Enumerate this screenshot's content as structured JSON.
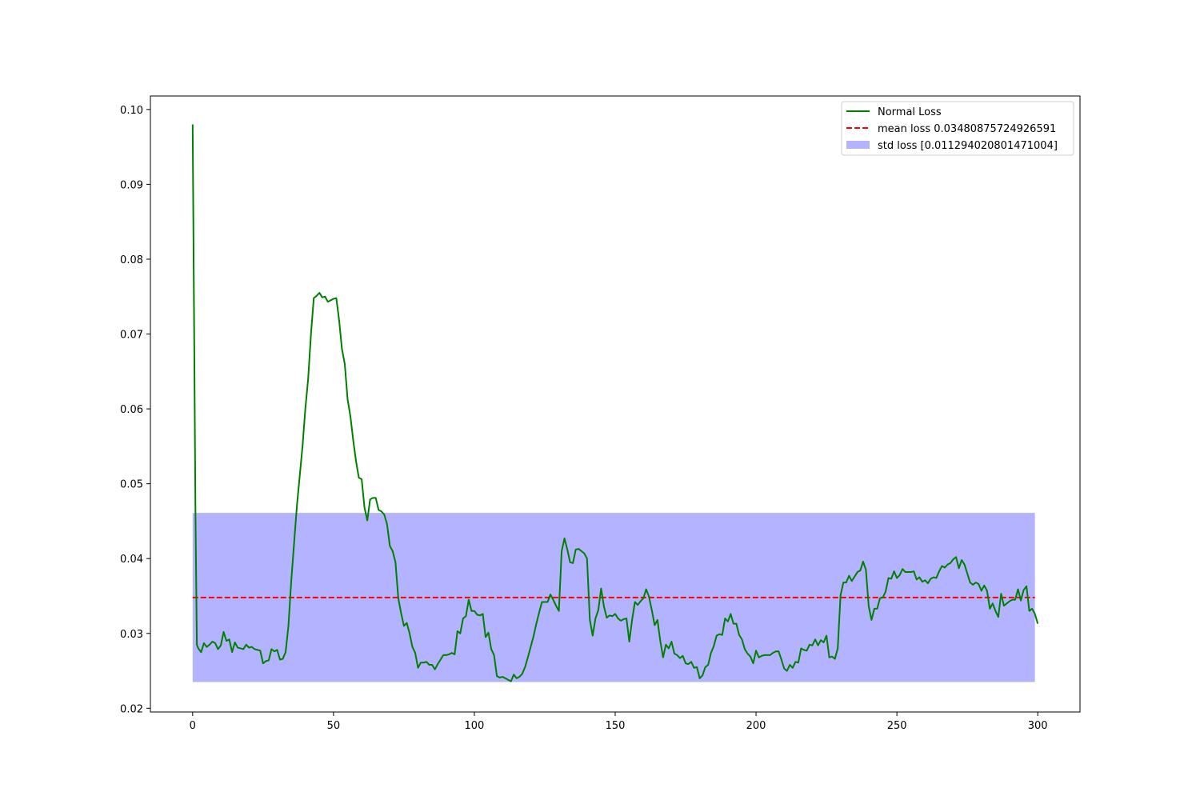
{
  "chart_data": {
    "type": "line",
    "title": "",
    "xlabel": "",
    "ylabel": "",
    "xlim": [
      -15,
      315
    ],
    "ylim": [
      0.0195,
      0.1018
    ],
    "xticks": [
      0,
      50,
      100,
      150,
      200,
      250,
      300
    ],
    "xtick_labels": [
      "0",
      "50",
      "100",
      "150",
      "200",
      "250",
      "300"
    ],
    "yticks": [
      0.02,
      0.03,
      0.04,
      0.05,
      0.06,
      0.07,
      0.08,
      0.09,
      0.1
    ],
    "ytick_labels": [
      "0.02",
      "0.03",
      "0.04",
      "0.05",
      "0.06",
      "0.07",
      "0.08",
      "0.09",
      "0.10"
    ],
    "grid": false,
    "legend_position": "top-right",
    "legend": [
      {
        "label": "Normal Loss",
        "kind": "line",
        "color": "#008000"
      },
      {
        "label": "mean loss 0.03480875724926591",
        "kind": "dashed",
        "color": "#ff0000"
      },
      {
        "label": "std loss [0.011294020801471004]",
        "kind": "patch",
        "color": "#b3b3ff"
      }
    ],
    "mean_loss": 0.03480875724926591,
    "std_loss": 0.011294020801471004,
    "band": {
      "x0": 0,
      "x1": 299,
      "y0": 0.0235,
      "y1": 0.0461,
      "color": "#b3b3ff"
    },
    "mean_line": {
      "x0": 0,
      "x1": 299,
      "y": 0.0348,
      "color": "#ff0000"
    },
    "series": [
      {
        "name": "Normal Loss",
        "color": "#008000",
        "points": [
          [
            0,
            0.098
          ],
          [
            1,
            0.046
          ],
          [
            1.5,
            0.0285
          ],
          [
            2,
            0.028
          ],
          [
            3,
            0.0275
          ],
          [
            4,
            0.0287
          ],
          [
            5,
            0.0282
          ],
          [
            6,
            0.0285
          ],
          [
            7,
            0.0289
          ],
          [
            8,
            0.0287
          ],
          [
            9,
            0.0279
          ],
          [
            10,
            0.0284
          ],
          [
            11,
            0.0302
          ],
          [
            12,
            0.029
          ],
          [
            13,
            0.0292
          ],
          [
            14,
            0.0275
          ],
          [
            15,
            0.0288
          ],
          [
            16,
            0.0281
          ],
          [
            17,
            0.028
          ],
          [
            18,
            0.0279
          ],
          [
            19,
            0.0285
          ],
          [
            20,
            0.0281
          ],
          [
            21,
            0.0282
          ],
          [
            22,
            0.0279
          ],
          [
            23,
            0.0278
          ],
          [
            24,
            0.0277
          ],
          [
            25,
            0.026
          ],
          [
            26,
            0.0263
          ],
          [
            27,
            0.0264
          ],
          [
            28,
            0.0279
          ],
          [
            29,
            0.0276
          ],
          [
            30,
            0.0278
          ],
          [
            31,
            0.0265
          ],
          [
            32,
            0.0266
          ],
          [
            33,
            0.0275
          ],
          [
            34,
            0.031
          ],
          [
            35,
            0.037
          ],
          [
            36,
            0.042
          ],
          [
            37,
            0.047
          ],
          [
            38,
            0.051
          ],
          [
            39,
            0.055
          ],
          [
            40,
            0.06
          ],
          [
            41,
            0.064
          ],
          [
            42,
            0.07
          ],
          [
            43,
            0.0748
          ],
          [
            44,
            0.0751
          ],
          [
            45,
            0.0755
          ],
          [
            46,
            0.0749
          ],
          [
            47,
            0.075
          ],
          [
            48,
            0.0743
          ],
          [
            49,
            0.0745
          ],
          [
            50,
            0.0747
          ],
          [
            51,
            0.0748
          ],
          [
            52,
            0.0718
          ],
          [
            53,
            0.068
          ],
          [
            54,
            0.066
          ],
          [
            55,
            0.0613
          ],
          [
            56,
            0.059
          ],
          [
            57,
            0.0558
          ],
          [
            58,
            0.053
          ],
          [
            59,
            0.0508
          ],
          [
            60,
            0.0506
          ],
          [
            61,
            0.0468
          ],
          [
            62,
            0.0451
          ],
          [
            63,
            0.0479
          ],
          [
            64,
            0.0481
          ],
          [
            65,
            0.0481
          ],
          [
            66,
            0.0465
          ],
          [
            67,
            0.0463
          ],
          [
            68,
            0.0459
          ],
          [
            69,
            0.0446
          ],
          [
            70,
            0.0417
          ],
          [
            71,
            0.041
          ],
          [
            72,
            0.0395
          ],
          [
            73,
            0.0347
          ],
          [
            74,
            0.0327
          ],
          [
            75,
            0.031
          ],
          [
            76,
            0.0314
          ],
          [
            77,
            0.03
          ],
          [
            78,
            0.0282
          ],
          [
            79,
            0.0274
          ],
          [
            80,
            0.0254
          ],
          [
            81,
            0.0261
          ],
          [
            82,
            0.0261
          ],
          [
            83,
            0.0262
          ],
          [
            84,
            0.0258
          ],
          [
            85,
            0.0258
          ],
          [
            86,
            0.0252
          ],
          [
            87,
            0.0259
          ],
          [
            88,
            0.0265
          ],
          [
            89,
            0.0271
          ],
          [
            90,
            0.0271
          ],
          [
            91,
            0.0272
          ],
          [
            92,
            0.0274
          ],
          [
            93,
            0.0272
          ],
          [
            94,
            0.0303
          ],
          [
            95,
            0.03
          ],
          [
            96,
            0.032
          ],
          [
            97,
            0.0323
          ],
          [
            98,
            0.0345
          ],
          [
            99,
            0.033
          ],
          [
            100,
            0.033
          ],
          [
            101,
            0.0325
          ],
          [
            102,
            0.0324
          ],
          [
            103,
            0.0326
          ],
          [
            104,
            0.0295
          ],
          [
            105,
            0.0301
          ],
          [
            106,
            0.0279
          ],
          [
            107,
            0.0271
          ],
          [
            108,
            0.0243
          ],
          [
            109,
            0.0241
          ],
          [
            110,
            0.0242
          ],
          [
            111,
            0.024
          ],
          [
            112,
            0.0238
          ],
          [
            113,
            0.0236
          ],
          [
            114,
            0.0245
          ],
          [
            115,
            0.024
          ],
          [
            116,
            0.0242
          ],
          [
            117,
            0.0246
          ],
          [
            118,
            0.0255
          ],
          [
            119,
            0.0268
          ],
          [
            120,
            0.0282
          ],
          [
            121,
            0.0296
          ],
          [
            122,
            0.0313
          ],
          [
            123,
            0.0328
          ],
          [
            124,
            0.0342
          ],
          [
            125,
            0.0342
          ],
          [
            126,
            0.0342
          ],
          [
            127,
            0.0352
          ],
          [
            128,
            0.0345
          ],
          [
            129,
            0.0337
          ],
          [
            130,
            0.033
          ],
          [
            131,
            0.041
          ],
          [
            132,
            0.0427
          ],
          [
            133,
            0.0412
          ],
          [
            134,
            0.0395
          ],
          [
            135,
            0.0394
          ],
          [
            136,
            0.0412
          ],
          [
            137,
            0.0413
          ],
          [
            138,
            0.041
          ],
          [
            139,
            0.0407
          ],
          [
            140,
            0.04
          ],
          [
            141,
            0.0318
          ],
          [
            142,
            0.0297
          ],
          [
            143,
            0.032
          ],
          [
            144,
            0.0331
          ],
          [
            145,
            0.036
          ],
          [
            146,
            0.0336
          ],
          [
            147,
            0.0321
          ],
          [
            148,
            0.0324
          ],
          [
            149,
            0.0323
          ],
          [
            150,
            0.0326
          ],
          [
            151,
            0.032
          ],
          [
            152,
            0.0317
          ],
          [
            153,
            0.0319
          ],
          [
            154,
            0.032
          ],
          [
            155,
            0.0289
          ],
          [
            156,
            0.0318
          ],
          [
            157,
            0.0342
          ],
          [
            158,
            0.0338
          ],
          [
            159,
            0.0343
          ],
          [
            160,
            0.0347
          ],
          [
            161,
            0.0359
          ],
          [
            162,
            0.0349
          ],
          [
            163,
            0.0331
          ],
          [
            164,
            0.0311
          ],
          [
            165,
            0.0318
          ],
          [
            166,
            0.029
          ],
          [
            167,
            0.0268
          ],
          [
            168,
            0.0285
          ],
          [
            169,
            0.028
          ],
          [
            170,
            0.0289
          ],
          [
            171,
            0.0273
          ],
          [
            172,
            0.0271
          ],
          [
            173,
            0.0267
          ],
          [
            174,
            0.027
          ],
          [
            175,
            0.026
          ],
          [
            176,
            0.0259
          ],
          [
            177,
            0.0262
          ],
          [
            178,
            0.0254
          ],
          [
            179,
            0.0255
          ],
          [
            180,
            0.024
          ],
          [
            181,
            0.0244
          ],
          [
            182,
            0.0255
          ],
          [
            183,
            0.0258
          ],
          [
            184,
            0.0274
          ],
          [
            185,
            0.0283
          ],
          [
            186,
            0.0297
          ],
          [
            187,
            0.0299
          ],
          [
            188,
            0.0298
          ],
          [
            189,
            0.032
          ],
          [
            190,
            0.0316
          ],
          [
            191,
            0.0326
          ],
          [
            192,
            0.0313
          ],
          [
            193,
            0.0313
          ],
          [
            194,
            0.0298
          ],
          [
            195,
            0.0292
          ],
          [
            196,
            0.0279
          ],
          [
            197,
            0.0273
          ],
          [
            198,
            0.0269
          ],
          [
            199,
            0.026
          ],
          [
            200,
            0.0277
          ],
          [
            201,
            0.0268
          ],
          [
            202,
            0.027
          ],
          [
            203,
            0.0271
          ],
          [
            204,
            0.0271
          ],
          [
            205,
            0.0271
          ],
          [
            206,
            0.0274
          ],
          [
            207,
            0.0276
          ],
          [
            208,
            0.0276
          ],
          [
            209,
            0.0265
          ],
          [
            210,
            0.0253
          ],
          [
            211,
            0.025
          ],
          [
            212,
            0.0258
          ],
          [
            213,
            0.0254
          ],
          [
            214,
            0.0262
          ],
          [
            215,
            0.0261
          ],
          [
            216,
            0.028
          ],
          [
            217,
            0.0278
          ],
          [
            218,
            0.0277
          ],
          [
            219,
            0.0285
          ],
          [
            220,
            0.0284
          ],
          [
            221,
            0.0292
          ],
          [
            222,
            0.0284
          ],
          [
            223,
            0.0291
          ],
          [
            224,
            0.0288
          ],
          [
            225,
            0.0297
          ],
          [
            226,
            0.0268
          ],
          [
            227,
            0.0269
          ],
          [
            228,
            0.0266
          ],
          [
            229,
            0.028
          ],
          [
            230,
            0.0351
          ],
          [
            231,
            0.0368
          ],
          [
            232,
            0.0368
          ],
          [
            233,
            0.0377
          ],
          [
            234,
            0.037
          ],
          [
            235,
            0.0376
          ],
          [
            236,
            0.0382
          ],
          [
            237,
            0.0384
          ],
          [
            238,
            0.0396
          ],
          [
            239,
            0.0385
          ],
          [
            240,
            0.0336
          ],
          [
            241,
            0.0318
          ],
          [
            242,
            0.0333
          ],
          [
            243,
            0.0333
          ],
          [
            244,
            0.0347
          ],
          [
            245,
            0.0348
          ],
          [
            246,
            0.0356
          ],
          [
            247,
            0.0374
          ],
          [
            248,
            0.0373
          ],
          [
            249,
            0.0383
          ],
          [
            250,
            0.0374
          ],
          [
            251,
            0.0378
          ],
          [
            252,
            0.0386
          ],
          [
            253,
            0.0382
          ],
          [
            254,
            0.0382
          ],
          [
            255,
            0.0382
          ],
          [
            256,
            0.0383
          ],
          [
            257,
            0.0372
          ],
          [
            258,
            0.0375
          ],
          [
            259,
            0.0369
          ],
          [
            260,
            0.0371
          ],
          [
            261,
            0.0367
          ],
          [
            262,
            0.0373
          ],
          [
            263,
            0.0375
          ],
          [
            264,
            0.0374
          ],
          [
            265,
            0.0383
          ],
          [
            266,
            0.039
          ],
          [
            267,
            0.0388
          ],
          [
            268,
            0.0392
          ],
          [
            269,
            0.0394
          ],
          [
            270,
            0.0399
          ],
          [
            271,
            0.0402
          ],
          [
            272,
            0.0387
          ],
          [
            273,
            0.0398
          ],
          [
            274,
            0.0392
          ],
          [
            275,
            0.038
          ],
          [
            276,
            0.0368
          ],
          [
            277,
            0.0365
          ],
          [
            278,
            0.0368
          ],
          [
            279,
            0.0366
          ],
          [
            280,
            0.0357
          ],
          [
            281,
            0.0364
          ],
          [
            282,
            0.0357
          ],
          [
            283,
            0.0333
          ],
          [
            284,
            0.034
          ],
          [
            285,
            0.033
          ],
          [
            286,
            0.0322
          ],
          [
            287,
            0.0353
          ],
          [
            288,
            0.0337
          ],
          [
            289,
            0.034
          ],
          [
            290,
            0.0343
          ],
          [
            291,
            0.0345
          ],
          [
            292,
            0.0345
          ],
          [
            293,
            0.0359
          ],
          [
            294,
            0.0344
          ],
          [
            295,
            0.0358
          ],
          [
            296,
            0.0363
          ],
          [
            297,
            0.033
          ],
          [
            298,
            0.0333
          ],
          [
            299,
            0.0326
          ],
          [
            300,
            0.0313
          ]
        ]
      }
    ]
  }
}
